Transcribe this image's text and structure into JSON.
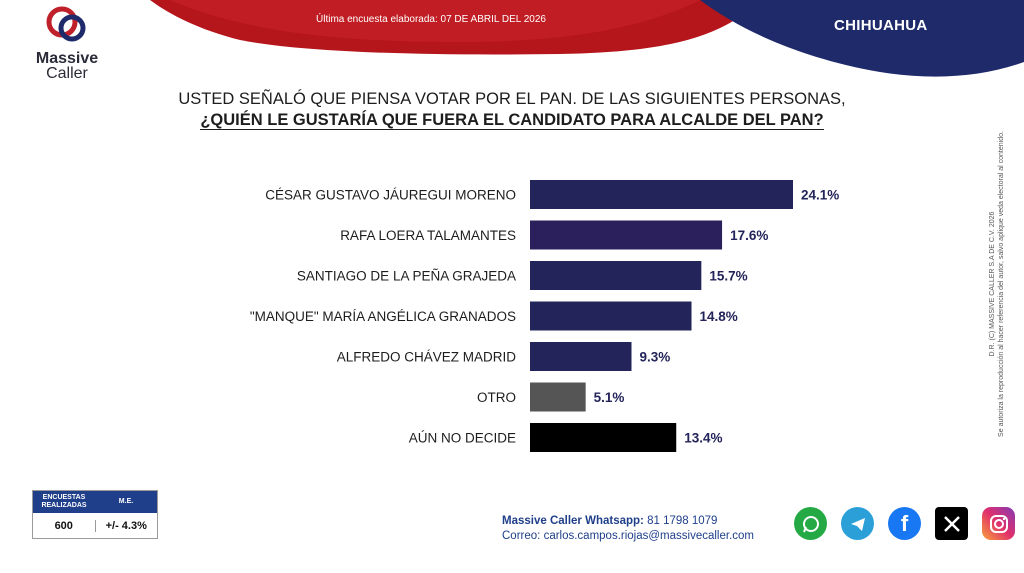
{
  "header": {
    "brand_line1": "Massive",
    "brand_line2": "Caller",
    "survey_date": "Última encuesta elaborada: 07 DE ABRIL DEL 2026",
    "region": "CHIHUAHUA"
  },
  "question": {
    "line1": "USTED SEÑALÓ QUE PIENSA VOTAR POR EL PAN. DE LAS SIGUIENTES PERSONAS,",
    "line2": "¿QUIÉN LE GUSTARÍA QUE FUERA EL CANDIDATO PARA ALCALDE DEL PAN?"
  },
  "chart_data": {
    "type": "bar",
    "orientation": "horizontal",
    "categories": [
      "CÉSAR GUSTAVO JÁUREGUI MORENO",
      "RAFA LOERA TALAMANTES",
      "SANTIAGO DE LA PEÑA GRAJEDA",
      "\"MANQUE\" MARÍA ANGÉLICA GRANADOS",
      "ALFREDO CHÁVEZ MADRID",
      "OTRO",
      "AÚN NO DECIDE"
    ],
    "values": [
      24.1,
      17.6,
      15.7,
      14.8,
      9.3,
      5.1,
      13.4
    ],
    "value_labels": [
      "24.1%",
      "17.6%",
      "15.7%",
      "14.8%",
      "9.3%",
      "5.1%",
      "13.4%"
    ],
    "colors": [
      "#23245a",
      "#2b1f5c",
      "#23245a",
      "#23245a",
      "#23245a",
      "#555555",
      "#000000"
    ],
    "grid": false,
    "legend": "none"
  },
  "copyright": {
    "line1": "D.R. (C) MASSIVE CALLER S.A DE C.V. 2026",
    "line2": "Se autoriza la reproducción al hacer referencia del autor, salvo aplique veda electoral al contenido."
  },
  "stats": {
    "col1_header": "ENCUESTAS REALIZADAS",
    "col2_header": "M.E.",
    "col1_value": "600",
    "col2_value": "+/- 4.3%"
  },
  "contact": {
    "whatsapp_label": "Massive Caller Whatsapp:",
    "whatsapp_number": "81 1798 1079",
    "email_label": "Correo:",
    "email": "carlos.campos.riojas@massivecaller.com"
  },
  "socials": [
    "whatsapp-icon",
    "telegram-icon",
    "facebook-icon",
    "x-icon",
    "instagram-icon"
  ],
  "colors": {
    "banner_red": "#b5161c",
    "banner_blue": "#1f2a6b",
    "bar": "#23245a"
  }
}
